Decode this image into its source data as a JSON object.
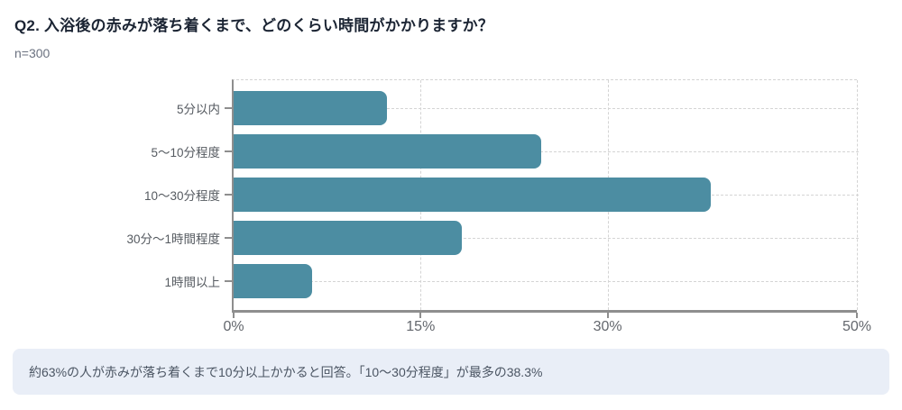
{
  "header": {
    "title": "Q2. 入浴後の赤みが落ち着くまで、どのくらい時間がかかりますか？",
    "sample_size": "n=300"
  },
  "chart_data": {
    "type": "bar",
    "orientation": "horizontal",
    "title": "Q2. 入浴後の赤みが落ち着くまで、どのくらい時間がかかりますか？",
    "subtitle": "n=300",
    "categories": [
      "5分以内",
      "5〜10分程度",
      "10〜30分程度",
      "30分〜1時間程度",
      "1時間以上"
    ],
    "values": [
      12.3,
      24.7,
      38.3,
      18.3,
      6.3
    ],
    "unit": "%",
    "xlabel": "",
    "ylabel": "",
    "xlim": [
      0,
      50
    ],
    "xticks": [
      {
        "value": 0,
        "label": "0%"
      },
      {
        "value": 15,
        "label": "15%"
      },
      {
        "value": 30,
        "label": "30%"
      },
      {
        "value": 50,
        "label": "50%"
      }
    ],
    "grid": "dashed",
    "legend": "none"
  },
  "footnote": {
    "text": "約63%の人が赤みが落ち着くまで10分以上かかると回答。「10〜30分程度」が最多の38.3%"
  },
  "colors": {
    "bar": "#4C8DA2",
    "axis": "#8e8e8e",
    "grid": "#d4d4d4",
    "title_text": "#1b2433",
    "footnote_bg": "#e9eef7",
    "footnote_text": "#4b5563"
  }
}
